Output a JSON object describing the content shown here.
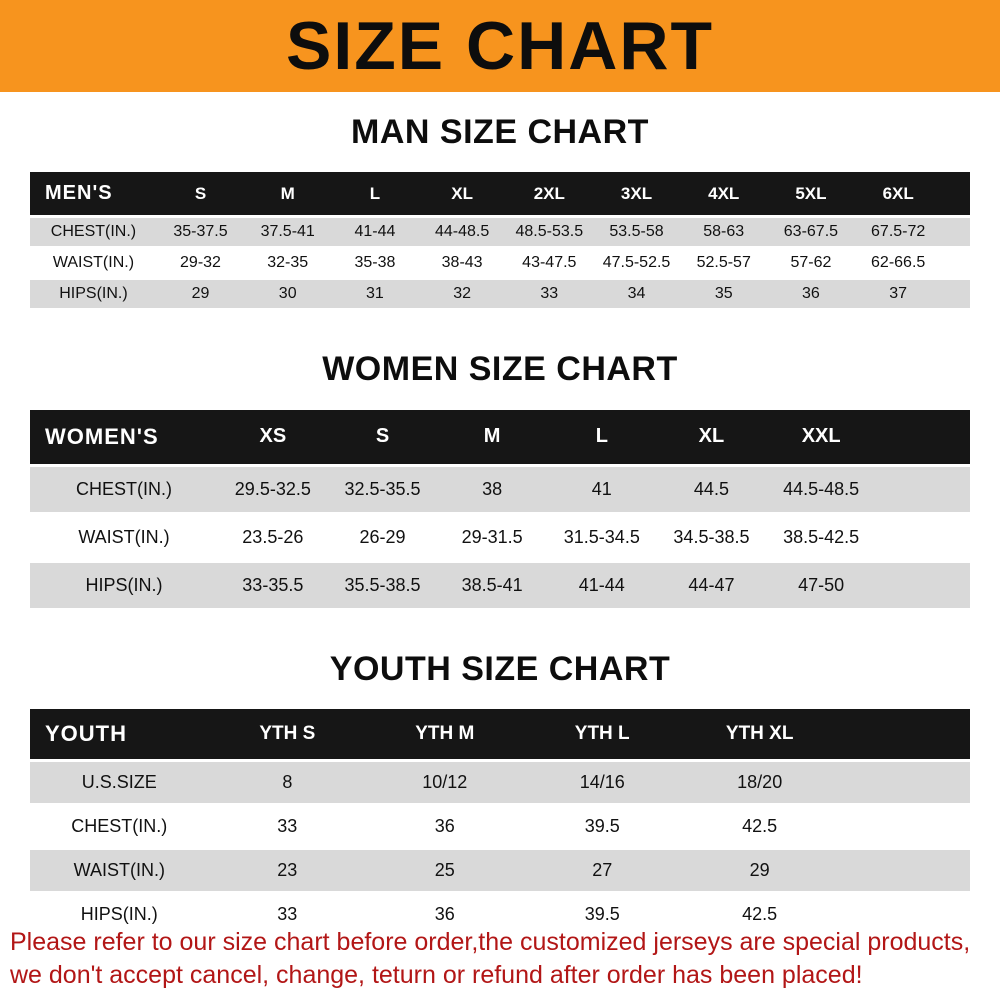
{
  "banner": {
    "title": "SIZE CHART"
  },
  "colors": {
    "banner_bg": "#f7941e",
    "table_header_bg": "#161616",
    "row_gray": "#d9d9d9",
    "row_white": "#ffffff",
    "disclaimer_red": "#b21616"
  },
  "sections": [
    {
      "id": "men",
      "heading": "MAN SIZE CHART",
      "table": {
        "header": [
          "MEN'S",
          "S",
          "M",
          "L",
          "XL",
          "2XL",
          "3XL",
          "4XL",
          "5XL",
          "6XL"
        ],
        "rows": [
          [
            "CHEST(IN.)",
            "35-37.5",
            "37.5-41",
            "41-44",
            "44-48.5",
            "48.5-53.5",
            "53.5-58",
            "58-63",
            "63-67.5",
            "67.5-72"
          ],
          [
            "WAIST(IN.)",
            "29-32",
            "32-35",
            "35-38",
            "38-43",
            "43-47.5",
            "47.5-52.5",
            "52.5-57",
            "57-62",
            "62-66.5"
          ],
          [
            "HIPS(IN.)",
            "29",
            "30",
            "31",
            "32",
            "33",
            "34",
            "35",
            "36",
            "37"
          ]
        ]
      }
    },
    {
      "id": "women",
      "heading": "WOMEN SIZE CHART",
      "table": {
        "header": [
          "WOMEN'S",
          "XS",
          "S",
          "M",
          "L",
          "XL",
          "XXL"
        ],
        "rows": [
          [
            "CHEST(IN.)",
            "29.5-32.5",
            "32.5-35.5",
            "38",
            "41",
            "44.5",
            "44.5-48.5"
          ],
          [
            "WAIST(IN.)",
            "23.5-26",
            "26-29",
            "29-31.5",
            "31.5-34.5",
            "34.5-38.5",
            "38.5-42.5"
          ],
          [
            "HIPS(IN.)",
            "33-35.5",
            "35.5-38.5",
            "38.5-41",
            "41-44",
            "44-47",
            "47-50"
          ]
        ]
      }
    },
    {
      "id": "youth",
      "heading": "YOUTH SIZE CHART",
      "table": {
        "header": [
          "YOUTH",
          "YTH S",
          "YTH M",
          "YTH L",
          "YTH XL"
        ],
        "rows": [
          [
            "U.S.SIZE",
            "8",
            "10/12",
            "14/16",
            "18/20"
          ],
          [
            "CHEST(IN.)",
            "33",
            "36",
            "39.5",
            "42.5"
          ],
          [
            "WAIST(IN.)",
            "23",
            "25",
            "27",
            "29"
          ],
          [
            "HIPS(IN.)",
            "33",
            "36",
            "39.5",
            "42.5"
          ]
        ]
      }
    }
  ],
  "disclaimer": {
    "lines": [
      "Please refer to our size chart before order,the customized jerseys are special products,",
      "we don't accept cancel, change, teturn or refund after order has been placed!"
    ]
  }
}
